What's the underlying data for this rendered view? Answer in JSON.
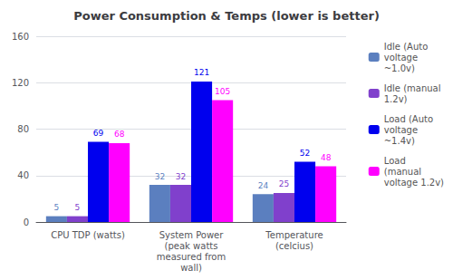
{
  "chart_data": {
    "type": "bar",
    "title": "Power Consumption & Temps (lower is better)",
    "categories": [
      "CPU TDP (watts)",
      "System Power\n(peak watts\nmeasured from\nwall)",
      "Temperature\n(celcius)"
    ],
    "series": [
      {
        "name": "Idle (Auto\nvoltage\n~1.0v)",
        "color": "#5B7FBF",
        "values": [
          5,
          32,
          24
        ]
      },
      {
        "name": "Idle (manual\n1.2v)",
        "color": "#8040CC",
        "values": [
          5,
          32,
          25
        ]
      },
      {
        "name": "Load (Auto\nvoltage\n~1.4v)",
        "color": "#0000EE",
        "values": [
          69,
          121,
          52
        ]
      },
      {
        "name": "Load\n(manual\nvoltage 1.2v)",
        "color": "#FF00FF",
        "values": [
          68,
          105,
          48
        ]
      }
    ],
    "ylim": [
      0,
      160
    ],
    "yticks": [
      0,
      40,
      80,
      120,
      160
    ],
    "grid": true,
    "legend": "right",
    "data_labels": true
  }
}
